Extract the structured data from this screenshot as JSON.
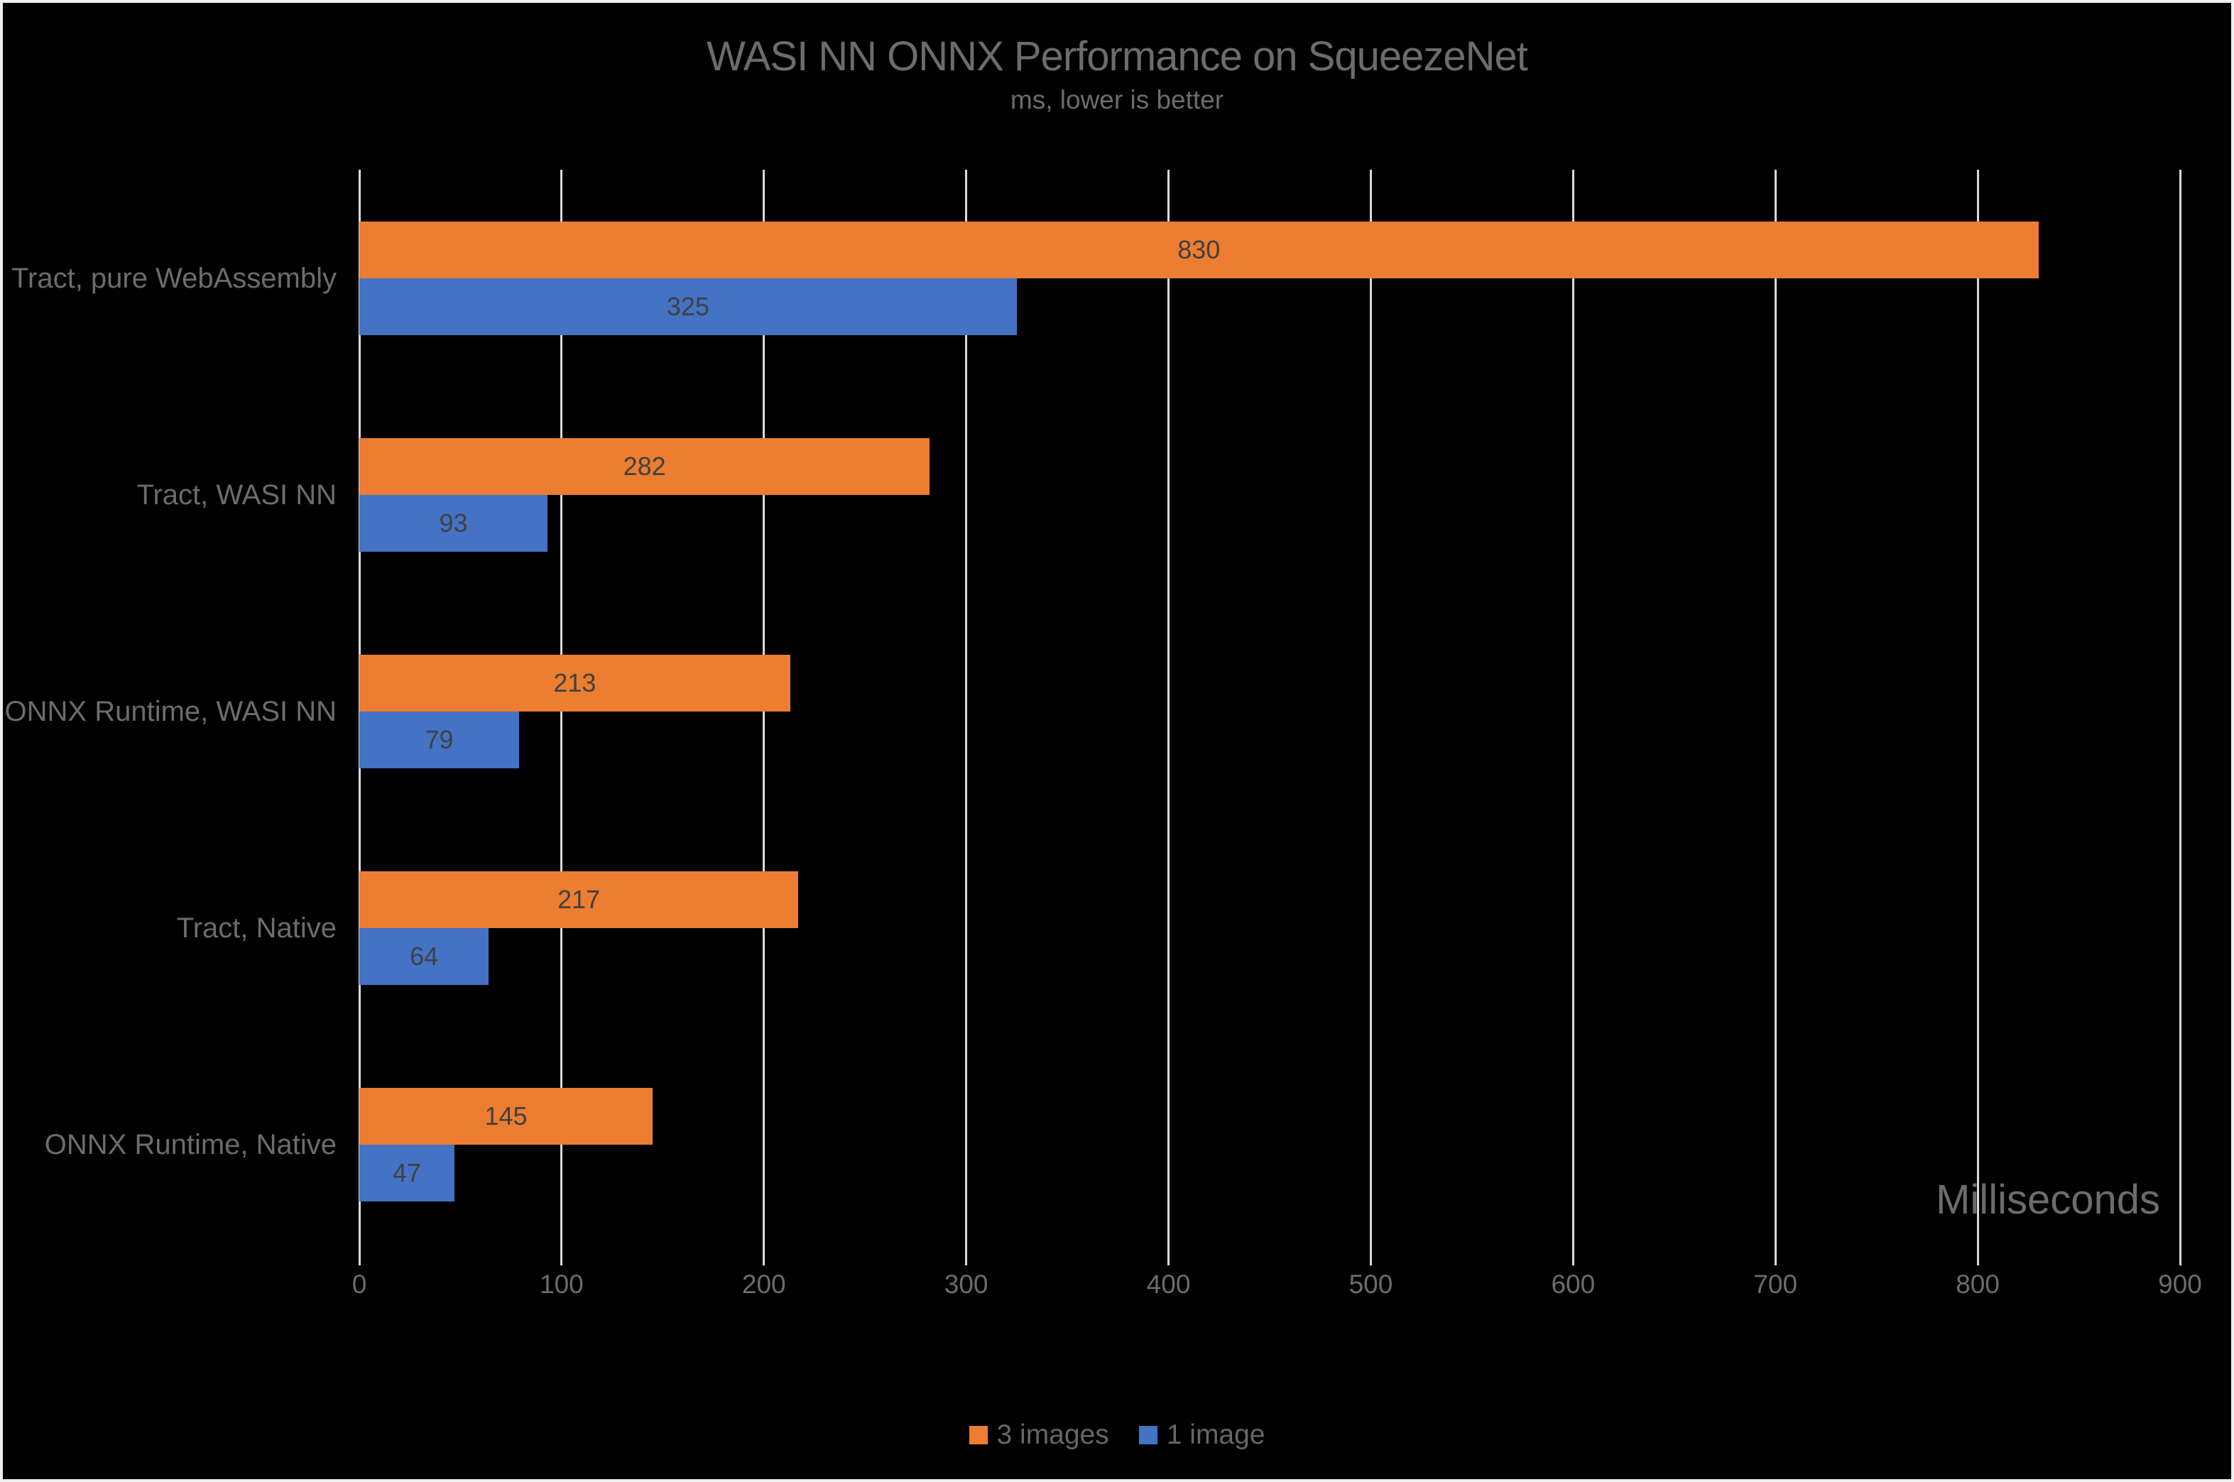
{
  "window": {
    "background": "#000000",
    "border_color": "#EFEFEF"
  },
  "colors": {
    "grid": "#D9D9D9",
    "text": "#6C6C6C",
    "value_label": "#404040"
  },
  "chart_data": {
    "type": "bar",
    "orientation": "horizontal",
    "title": "WASI NN ONNX Performance on SqueezeNet",
    "subtitle": "ms, lower is better",
    "xlabel": "Milliseconds",
    "ylabel": "",
    "categories": [
      "Tract, pure WebAssembly",
      "Tract, WASI NN",
      "ONNX Runtime, WASI NN",
      "Tract, Native",
      "ONNX Runtime, Native"
    ],
    "series": [
      {
        "name": "3 images",
        "color": "#ED7D31",
        "values": [
          830,
          282,
          213,
          217,
          145
        ]
      },
      {
        "name": "1 image",
        "color": "#4472C4",
        "values": [
          325,
          93,
          79,
          64,
          47
        ]
      }
    ],
    "xlim": [
      0,
      900
    ],
    "xticks": [
      0,
      100,
      200,
      300,
      400,
      500,
      600,
      700,
      800,
      900
    ],
    "grid": true,
    "data_labels": true,
    "legend_position": "bottom"
  }
}
